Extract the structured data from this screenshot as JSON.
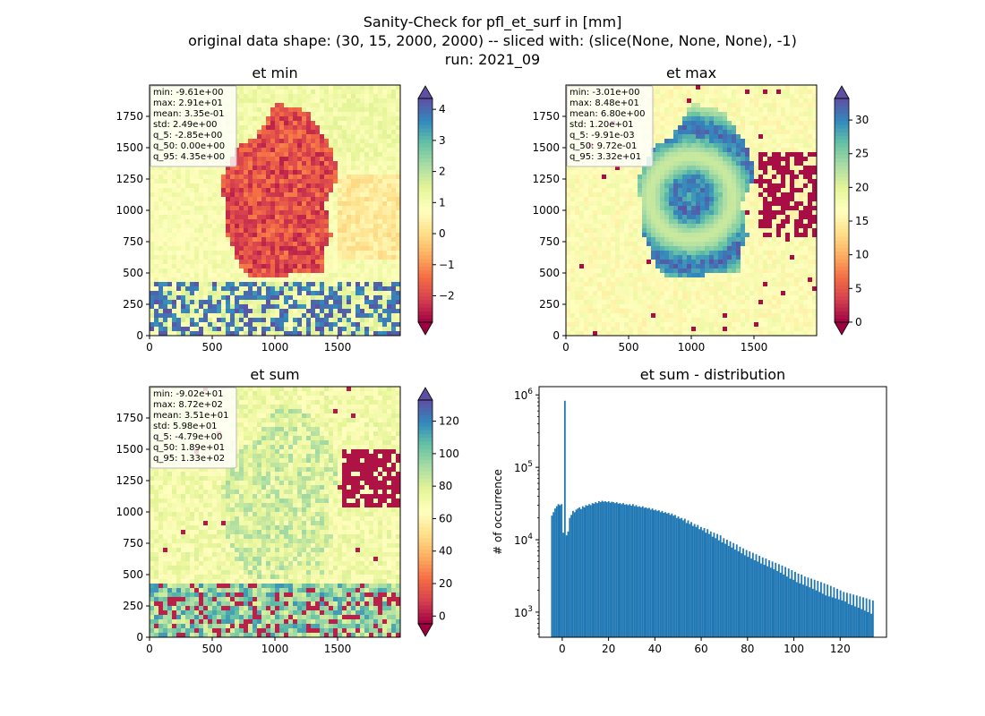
{
  "figure": {
    "title_lines": [
      "Sanity-Check for pfl_et_surf in [mm]",
      "original data shape: (30, 15, 2000, 2000) -- sliced with: (slice(None, None, None), -1)",
      "run: 2021_09"
    ]
  },
  "chart_data": [
    {
      "type": "heatmap",
      "title": "et min",
      "xlim": [
        0,
        2000
      ],
      "ylim": [
        0,
        2000
      ],
      "x_ticks": [
        0,
        500,
        1000,
        1500
      ],
      "y_ticks": [
        0,
        250,
        500,
        750,
        1000,
        1250,
        1500,
        1750
      ],
      "colormap": "Spectral",
      "colorbar": {
        "range": [
          -2.85,
          4.35
        ],
        "ticks": [
          -2,
          -1,
          0,
          1,
          2,
          3,
          4
        ],
        "tick_labels": [
          "−2",
          "−1",
          "0",
          "1",
          "2",
          "3",
          "4"
        ],
        "extend": "both"
      },
      "stats": [
        "min: -9.61e+00",
        "max: 2.91e+01",
        "mean: 3.35e-01",
        "std: 2.49e+00",
        "q_5: -2.85e+00",
        "q_50: 0.00e+00",
        "q_95: 4.35e+00"
      ]
    },
    {
      "type": "heatmap",
      "title": "et max",
      "xlim": [
        0,
        2000
      ],
      "ylim": [
        0,
        2000
      ],
      "x_ticks": [
        0,
        500,
        1000,
        1500
      ],
      "y_ticks": [
        0,
        250,
        500,
        750,
        1000,
        1250,
        1500,
        1750
      ],
      "colormap": "Spectral",
      "colorbar": {
        "range": [
          -0.0099,
          33.2
        ],
        "ticks": [
          0,
          5,
          10,
          15,
          20,
          25,
          30
        ],
        "tick_labels": [
          "0",
          "5",
          "10",
          "15",
          "20",
          "25",
          "30"
        ],
        "extend": "both"
      },
      "stats": [
        "min: -3.01e+00",
        "max: 8.48e+01",
        "mean: 6.80e+00",
        "std: 1.20e+01",
        "q_5: -9.91e-03",
        "q_50: 9.72e-01",
        "q_95: 3.32e+01"
      ]
    },
    {
      "type": "heatmap",
      "title": "et sum",
      "xlim": [
        0,
        2000
      ],
      "ylim": [
        0,
        2000
      ],
      "x_ticks": [
        0,
        500,
        1000,
        1500
      ],
      "y_ticks": [
        0,
        250,
        500,
        750,
        1000,
        1250,
        1500,
        1750
      ],
      "colormap": "Spectral",
      "colorbar": {
        "range": [
          -4.79,
          133
        ],
        "ticks": [
          0,
          20,
          40,
          60,
          80,
          100,
          120
        ],
        "tick_labels": [
          "0",
          "20",
          "40",
          "60",
          "80",
          "100",
          "120"
        ],
        "extend": "both"
      },
      "stats": [
        "min: -9.02e+01",
        "max: 8.72e+02",
        "mean: 3.51e+01",
        "std: 5.98e+01",
        "q_5: -4.79e+00",
        "q_50: 1.89e+01",
        "q_95: 1.33e+02"
      ]
    },
    {
      "type": "bar",
      "title": "et sum - distribution",
      "ylabel": "# of occurrence",
      "xlabel": "",
      "yscale": "log",
      "xlim": [
        -10,
        140
      ],
      "ylim": [
        450,
        1300000
      ],
      "x_ticks": [
        0,
        20,
        40,
        60,
        80,
        100,
        120
      ],
      "y_ticks": [
        1000,
        10000,
        100000,
        1000000
      ],
      "y_tick_labels": [
        [
          "10",
          "3"
        ],
        [
          "10",
          "4"
        ],
        [
          "10",
          "5"
        ],
        [
          "10",
          "6"
        ]
      ],
      "bar_color": "#1f77b4",
      "bins": {
        "start": -4.8,
        "width": 0.7
      },
      "counts": [
        21500,
        24000,
        27000,
        29000,
        31000,
        30000,
        31000,
        12500,
        830000,
        11500,
        13000,
        20000,
        22000,
        25000,
        24000,
        26000,
        27000,
        28000,
        26500,
        29000,
        28000,
        30000,
        29500,
        31000,
        30000,
        32000,
        31500,
        33000,
        32000,
        34000,
        33000,
        34500,
        33500,
        34000,
        33000,
        34000,
        32500,
        33500,
        33000,
        32000,
        33000,
        31500,
        32000,
        31000,
        32000,
        30500,
        31000,
        30000,
        31000,
        29500,
        31000,
        29000,
        30000,
        28500,
        29000,
        28000,
        29000,
        27500,
        28000,
        27000,
        27500,
        26000,
        27000,
        25500,
        26000,
        25000,
        25500,
        24000,
        25000,
        23500,
        24000,
        23000,
        23500,
        22000,
        23000,
        21500,
        22000,
        20000,
        21000,
        19500,
        20000,
        18500,
        19500,
        17000,
        18500,
        16500,
        17500,
        15500,
        16500,
        15000,
        16000,
        14000,
        15000,
        13500,
        14500,
        12500,
        14000,
        12000,
        13000,
        11000,
        12500,
        10500,
        12000,
        9800,
        11500,
        9200,
        10500,
        8800,
        10000,
        8200,
        9500,
        7800,
        9000,
        7300,
        8600,
        6900,
        8000,
        6500,
        7600,
        6100,
        7200,
        5800,
        6900,
        5500,
        6600,
        5200,
        6300,
        5000,
        6000,
        4700,
        5700,
        4500,
        5500,
        4300,
        5200,
        4100,
        5000,
        3900,
        4800,
        3700,
        4600,
        3500,
        4400,
        3300,
        4200,
        3100,
        4000,
        2900,
        3800,
        2800,
        3600,
        2600,
        3400,
        2500,
        3300,
        2400,
        3100,
        2300,
        3000,
        2200,
        2900,
        2100,
        2800,
        2000,
        2700,
        1900,
        2600,
        1800,
        2500,
        1700,
        2400,
        1650,
        2300,
        1600,
        2200,
        1550,
        2100,
        1500,
        2000,
        1450,
        1900,
        1400,
        1850,
        1300,
        1800,
        1250,
        1750,
        1200,
        1700,
        1150,
        1650,
        1100,
        1600,
        1050,
        1550,
        1000,
        1500,
        950,
        1450
      ]
    }
  ]
}
